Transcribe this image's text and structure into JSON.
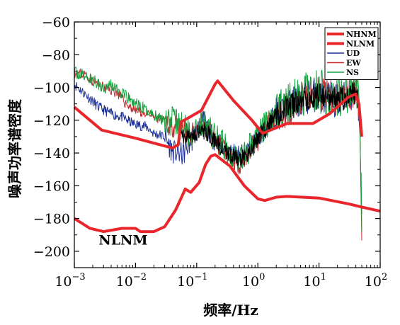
{
  "chart_data": {
    "type": "line",
    "xlabel": "频率/Hz",
    "ylabel": "噪声功率谱密度",
    "x_scale": "log",
    "xlim": [
      0.001,
      100
    ],
    "ylim": [
      -210,
      -60
    ],
    "x_ticks": [
      {
        "value": 0.001,
        "base": "10",
        "exp": "−3"
      },
      {
        "value": 0.01,
        "base": "10",
        "exp": "−2"
      },
      {
        "value": 0.1,
        "base": "10",
        "exp": "−1"
      },
      {
        "value": 1,
        "base": "10",
        "exp": "0"
      },
      {
        "value": 10,
        "base": "10",
        "exp": "1"
      },
      {
        "value": 100,
        "base": "10",
        "exp": "2"
      }
    ],
    "y_ticks": [
      {
        "value": -60,
        "label": "−60"
      },
      {
        "value": -80,
        "label": "−80"
      },
      {
        "value": -100,
        "label": "−100"
      },
      {
        "value": -120,
        "label": "−120"
      },
      {
        "value": -140,
        "label": "−140"
      },
      {
        "value": -160,
        "label": "−160"
      },
      {
        "value": -180,
        "label": "−180"
      },
      {
        "value": -200,
        "label": "−200"
      }
    ],
    "annotations": [
      {
        "text": "NLNM",
        "x": 0.0025,
        "y": -196
      }
    ],
    "legend": {
      "placement": "top-right"
    },
    "series": [
      {
        "name": "NHNM",
        "color": "#e8262c",
        "width": 4,
        "kind": "model",
        "points": [
          [
            0.001,
            -112
          ],
          [
            0.0028,
            -126
          ],
          [
            0.01,
            -131
          ],
          [
            0.04,
            -137
          ],
          [
            0.05,
            -135
          ],
          [
            0.055,
            -121
          ],
          [
            0.07,
            -119
          ],
          [
            0.12,
            -114
          ],
          [
            0.2,
            -98
          ],
          [
            0.22,
            -96
          ],
          [
            0.4,
            -108
          ],
          [
            0.8,
            -120
          ],
          [
            1.2,
            -128
          ],
          [
            3,
            -122
          ],
          [
            8,
            -122
          ],
          [
            15,
            -116
          ],
          [
            30,
            -106
          ],
          [
            40,
            -104
          ],
          [
            45,
            -110
          ],
          [
            50,
            -130
          ]
        ]
      },
      {
        "name": "NLNM",
        "color": "#e8262c",
        "width": 4,
        "kind": "model",
        "points": [
          [
            0.001,
            -180
          ],
          [
            0.0018,
            -186
          ],
          [
            0.003,
            -188
          ],
          [
            0.006,
            -186
          ],
          [
            0.01,
            -186
          ],
          [
            0.012,
            -188
          ],
          [
            0.02,
            -188
          ],
          [
            0.03,
            -185
          ],
          [
            0.045,
            -175
          ],
          [
            0.055,
            -168
          ],
          [
            0.065,
            -162
          ],
          [
            0.08,
            -164
          ],
          [
            0.11,
            -158
          ],
          [
            0.14,
            -147
          ],
          [
            0.17,
            -142
          ],
          [
            0.2,
            -141
          ],
          [
            0.35,
            -148
          ],
          [
            0.6,
            -160
          ],
          [
            1,
            -168
          ],
          [
            1.3,
            -169
          ],
          [
            2,
            -167
          ],
          [
            3,
            -166.5
          ],
          [
            10,
            -167.5
          ],
          [
            30,
            -171
          ],
          [
            50,
            -173
          ],
          [
            100,
            -175.5
          ]
        ]
      },
      {
        "name": "UD",
        "color": "#1b2f95",
        "width": 1,
        "kind": "data",
        "noise_seed": 11,
        "noise": 4,
        "points": [
          [
            0.001,
            -98
          ],
          [
            0.0015,
            -104
          ],
          [
            0.0025,
            -112
          ],
          [
            0.004,
            -116
          ],
          [
            0.006,
            -118
          ],
          [
            0.009,
            -122
          ],
          [
            0.015,
            -124
          ],
          [
            0.02,
            -128
          ],
          [
            0.03,
            -130
          ],
          [
            0.04,
            -139
          ],
          [
            0.06,
            -141
          ],
          [
            0.08,
            -133
          ],
          [
            0.1,
            -127
          ],
          [
            0.13,
            -121
          ],
          [
            0.18,
            -130
          ],
          [
            0.3,
            -138
          ],
          [
            0.5,
            -143
          ],
          [
            0.7,
            -138
          ],
          [
            1,
            -130
          ],
          [
            1.5,
            -122
          ],
          [
            2,
            -116
          ],
          [
            3,
            -112
          ],
          [
            5,
            -108
          ],
          [
            8,
            -104
          ],
          [
            12,
            -106
          ],
          [
            20,
            -108
          ],
          [
            30,
            -106
          ],
          [
            40,
            -103
          ],
          [
            45,
            -112
          ],
          [
            48,
            -152
          ],
          [
            50,
            -185
          ]
        ]
      },
      {
        "name": "EW",
        "color": "#c7292e",
        "width": 1,
        "kind": "data",
        "noise_seed": 23,
        "noise": 4,
        "points": [
          [
            0.001,
            -91
          ],
          [
            0.0015,
            -92
          ],
          [
            0.002,
            -96
          ],
          [
            0.003,
            -100
          ],
          [
            0.005,
            -103
          ],
          [
            0.007,
            -110
          ],
          [
            0.01,
            -114
          ],
          [
            0.015,
            -116
          ],
          [
            0.02,
            -118
          ],
          [
            0.03,
            -121
          ],
          [
            0.05,
            -125
          ],
          [
            0.08,
            -130
          ],
          [
            0.12,
            -122
          ],
          [
            0.18,
            -130
          ],
          [
            0.3,
            -140
          ],
          [
            0.5,
            -146
          ],
          [
            0.7,
            -140
          ],
          [
            1,
            -132
          ],
          [
            1.5,
            -122
          ],
          [
            2,
            -117
          ],
          [
            3,
            -113
          ],
          [
            5,
            -108
          ],
          [
            8,
            -104
          ],
          [
            12,
            -105
          ],
          [
            20,
            -107
          ],
          [
            30,
            -103
          ],
          [
            40,
            -101
          ],
          [
            45,
            -108
          ],
          [
            48,
            -150
          ],
          [
            50,
            -186
          ]
        ]
      },
      {
        "name": "NS",
        "color": "#14a33e",
        "width": 1,
        "kind": "data",
        "noise_seed": 37,
        "noise": 5,
        "points": [
          [
            0.001,
            -91
          ],
          [
            0.0015,
            -93
          ],
          [
            0.002,
            -96
          ],
          [
            0.003,
            -100
          ],
          [
            0.004,
            -98
          ],
          [
            0.006,
            -104
          ],
          [
            0.01,
            -110
          ],
          [
            0.015,
            -114
          ],
          [
            0.02,
            -117
          ],
          [
            0.03,
            -119
          ],
          [
            0.05,
            -122
          ],
          [
            0.08,
            -128
          ],
          [
            0.12,
            -121
          ],
          [
            0.18,
            -128
          ],
          [
            0.3,
            -137
          ],
          [
            0.5,
            -144
          ],
          [
            0.7,
            -138
          ],
          [
            1,
            -128
          ],
          [
            1.5,
            -121
          ],
          [
            2,
            -115
          ],
          [
            3,
            -111
          ],
          [
            5,
            -106
          ],
          [
            8,
            -102
          ],
          [
            12,
            -103
          ],
          [
            20,
            -105
          ],
          [
            30,
            -102
          ],
          [
            40,
            -99
          ],
          [
            45,
            -110
          ],
          [
            48,
            -148
          ],
          [
            50,
            -184
          ]
        ]
      },
      {
        "name": "",
        "color": "#000000",
        "width": 1,
        "kind": "data",
        "noise_seed": 51,
        "noise": 3,
        "points": [
          [
            0.05,
            -128
          ],
          [
            0.08,
            -130
          ],
          [
            0.12,
            -125
          ],
          [
            0.18,
            -131
          ],
          [
            0.3,
            -139
          ],
          [
            0.5,
            -145
          ],
          [
            0.7,
            -140
          ],
          [
            1,
            -131
          ],
          [
            1.5,
            -123
          ],
          [
            2,
            -117
          ],
          [
            3,
            -113
          ],
          [
            5,
            -109
          ],
          [
            8,
            -105
          ],
          [
            12,
            -106
          ],
          [
            20,
            -108
          ],
          [
            30,
            -105
          ],
          [
            40,
            -104
          ],
          [
            45,
            -112
          ]
        ]
      }
    ]
  }
}
